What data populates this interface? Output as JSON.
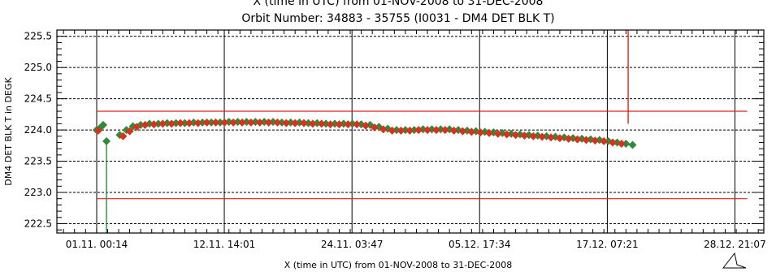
{
  "chart_data": {
    "type": "scatter",
    "title_top": "X (time in UTC) from 01-NOV-2008 to 31-DEC-2008",
    "title": "Orbit Number: 34883 - 35755 (I0031 - DM4 DET BLK T)",
    "xlabel": "X (time in UTC) from 01-NOV-2008 to 31-DEC-2008",
    "ylabel": "DM4 DET BLK T in DEGK",
    "xlim_days": [
      -3.6,
      60.5
    ],
    "ylim": [
      222.35,
      225.6
    ],
    "x_ticks": [
      {
        "label": "01.11. 00:14",
        "day": 0.01
      },
      {
        "label": "12.11. 14:01",
        "day": 11.58
      },
      {
        "label": "24.11. 03:47",
        "day": 23.16
      },
      {
        "label": "05.12. 17:34",
        "day": 34.73
      },
      {
        "label": "17.12. 07:21",
        "day": 46.31
      },
      {
        "label": "28.12. 21:07",
        "day": 57.88
      }
    ],
    "y_ticks": [
      222.5,
      223.0,
      223.5,
      224.0,
      224.5,
      225.0,
      225.5
    ],
    "limit_lines": [
      {
        "value": 224.3,
        "color": "#e0201c"
      },
      {
        "value": 222.9,
        "color": "#e0201c"
      }
    ],
    "spike": {
      "day": 48.2,
      "y_from": 224.1,
      "y_to": 225.6,
      "color": "#e0201c"
    },
    "dropout": {
      "day": 0.9,
      "y_from": 222.35,
      "y_to": 223.8,
      "color": "#2e8b3a"
    },
    "series": [
      {
        "color": "#2e8b3a",
        "points": [
          [
            0.0,
            224.0
          ],
          [
            0.3,
            224.03
          ],
          [
            0.6,
            224.08
          ],
          [
            0.9,
            223.82
          ],
          [
            2.1,
            223.92
          ],
          [
            2.7,
            224.0
          ],
          [
            3.3,
            224.06
          ],
          [
            4.0,
            224.08
          ],
          [
            4.8,
            224.1
          ],
          [
            5.6,
            224.1
          ],
          [
            6.4,
            224.11
          ],
          [
            7.2,
            224.11
          ],
          [
            8.0,
            224.11
          ],
          [
            8.8,
            224.12
          ],
          [
            9.6,
            224.12
          ],
          [
            10.4,
            224.12
          ],
          [
            11.2,
            224.12
          ],
          [
            12.0,
            224.13
          ],
          [
            12.8,
            224.13
          ],
          [
            13.6,
            224.13
          ],
          [
            14.4,
            224.13
          ],
          [
            15.2,
            224.13
          ],
          [
            16.0,
            224.13
          ],
          [
            16.8,
            224.12
          ],
          [
            17.6,
            224.12
          ],
          [
            18.4,
            224.12
          ],
          [
            19.2,
            224.11
          ],
          [
            20.0,
            224.11
          ],
          [
            20.8,
            224.1
          ],
          [
            21.6,
            224.1
          ],
          [
            22.4,
            224.1
          ],
          [
            23.2,
            224.1
          ],
          [
            24.0,
            224.09
          ],
          [
            24.8,
            224.08
          ],
          [
            25.6,
            224.05
          ],
          [
            26.4,
            224.02
          ],
          [
            27.2,
            224.0
          ],
          [
            28.0,
            224.0
          ],
          [
            28.8,
            224.0
          ],
          [
            29.6,
            224.01
          ],
          [
            30.4,
            224.01
          ],
          [
            31.2,
            224.01
          ],
          [
            32.0,
            224.01
          ],
          [
            32.8,
            224.0
          ],
          [
            33.6,
            223.99
          ],
          [
            34.4,
            223.98
          ],
          [
            35.2,
            223.97
          ],
          [
            36.0,
            223.96
          ],
          [
            36.8,
            223.95
          ],
          [
            37.6,
            223.94
          ],
          [
            38.4,
            223.93
          ],
          [
            39.2,
            223.92
          ],
          [
            40.0,
            223.91
          ],
          [
            40.8,
            223.9
          ],
          [
            41.6,
            223.89
          ],
          [
            42.4,
            223.88
          ],
          [
            43.2,
            223.87
          ],
          [
            44.0,
            223.86
          ],
          [
            44.8,
            223.85
          ],
          [
            45.6,
            223.84
          ],
          [
            46.4,
            223.82
          ],
          [
            47.2,
            223.8
          ],
          [
            48.0,
            223.78
          ],
          [
            48.6,
            223.76
          ]
        ]
      },
      {
        "color": "#d8321e",
        "points": [
          [
            0.15,
            223.99
          ],
          [
            2.4,
            223.9
          ],
          [
            3.0,
            223.98
          ],
          [
            3.65,
            224.05
          ],
          [
            4.4,
            224.08
          ],
          [
            5.2,
            224.09
          ],
          [
            6.0,
            224.1
          ],
          [
            6.8,
            224.1
          ],
          [
            7.6,
            224.11
          ],
          [
            8.4,
            224.11
          ],
          [
            9.2,
            224.11
          ],
          [
            10.0,
            224.12
          ],
          [
            10.8,
            224.12
          ],
          [
            11.6,
            224.12
          ],
          [
            12.4,
            224.12
          ],
          [
            13.2,
            224.12
          ],
          [
            14.0,
            224.12
          ],
          [
            14.8,
            224.12
          ],
          [
            15.6,
            224.12
          ],
          [
            16.4,
            224.12
          ],
          [
            17.2,
            224.11
          ],
          [
            18.0,
            224.11
          ],
          [
            18.8,
            224.11
          ],
          [
            19.6,
            224.1
          ],
          [
            20.4,
            224.1
          ],
          [
            21.2,
            224.09
          ],
          [
            22.0,
            224.09
          ],
          [
            22.8,
            224.09
          ],
          [
            23.6,
            224.09
          ],
          [
            24.4,
            224.07
          ],
          [
            25.2,
            224.04
          ],
          [
            26.0,
            224.01
          ],
          [
            26.8,
            223.99
          ],
          [
            27.6,
            223.99
          ],
          [
            28.4,
            223.99
          ],
          [
            29.2,
            224.0
          ],
          [
            30.0,
            224.0
          ],
          [
            30.8,
            224.0
          ],
          [
            31.6,
            224.0
          ],
          [
            32.4,
            223.99
          ],
          [
            33.2,
            223.98
          ],
          [
            34.0,
            223.97
          ],
          [
            34.8,
            223.96
          ],
          [
            35.6,
            223.95
          ],
          [
            36.4,
            223.94
          ],
          [
            37.2,
            223.93
          ],
          [
            38.0,
            223.92
          ],
          [
            38.8,
            223.91
          ],
          [
            39.6,
            223.9
          ],
          [
            40.4,
            223.89
          ],
          [
            41.2,
            223.88
          ],
          [
            42.0,
            223.87
          ],
          [
            42.8,
            223.86
          ],
          [
            43.6,
            223.85
          ],
          [
            44.4,
            223.84
          ],
          [
            45.2,
            223.83
          ],
          [
            46.0,
            223.82
          ],
          [
            46.8,
            223.8
          ],
          [
            47.6,
            223.78
          ]
        ]
      }
    ]
  }
}
